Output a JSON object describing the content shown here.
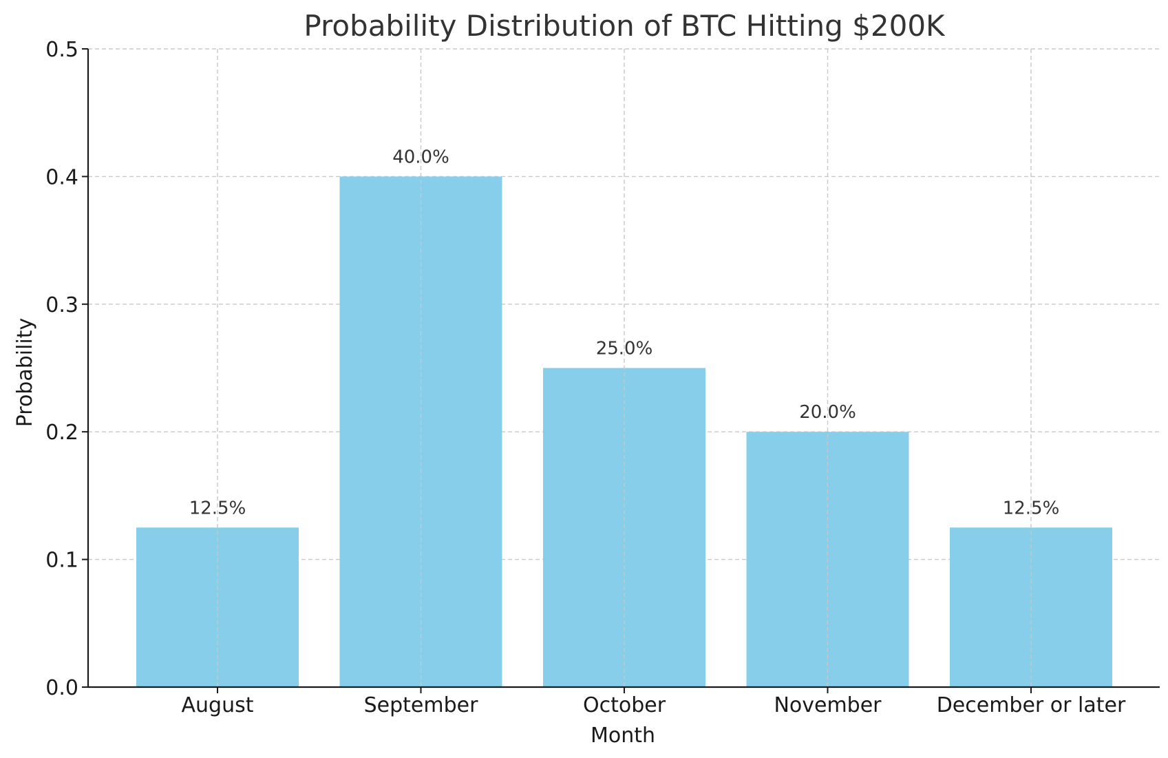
{
  "chart_data": {
    "type": "bar",
    "title": "Probability Distribution of BTC Hitting $200K",
    "xlabel": "Month",
    "ylabel": "Probability",
    "categories": [
      "August",
      "September",
      "October",
      "November",
      "December or later"
    ],
    "values": [
      0.125,
      0.4,
      0.25,
      0.2,
      0.125
    ],
    "data_labels": [
      "12.5%",
      "40.0%",
      "25.0%",
      "20.0%",
      "12.5%"
    ],
    "ylim": [
      0,
      0.5
    ],
    "yticks": [
      0.0,
      0.1,
      0.2,
      0.3,
      0.4,
      0.5
    ],
    "ytick_labels": [
      "0.0",
      "0.1",
      "0.2",
      "0.3",
      "0.4",
      "0.5"
    ],
    "grid": true,
    "bar_color": "#87CEEB"
  }
}
